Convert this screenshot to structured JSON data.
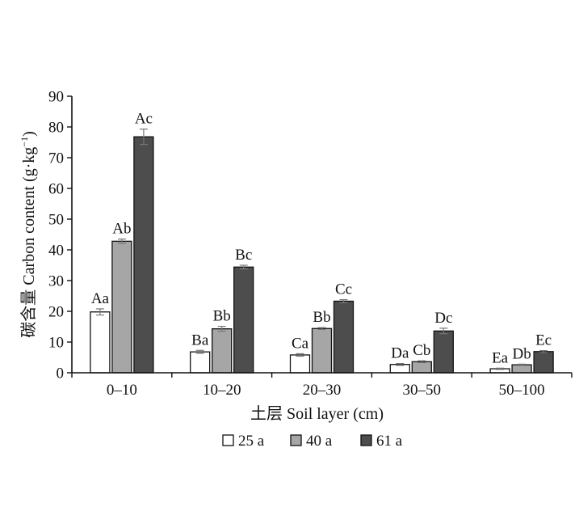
{
  "chart_data": {
    "type": "bar",
    "xlabel": "土层 Soil layer (cm)",
    "ylabel_prefix": "碳含量 Carbon content (g·kg",
    "ylabel_sup": "−1",
    "ylabel_suffix": ")",
    "ylim": [
      0,
      90
    ],
    "yticks": [
      0,
      10,
      20,
      30,
      40,
      50,
      60,
      70,
      80,
      90
    ],
    "categories": [
      "0–10",
      "10–20",
      "20–30",
      "30–50",
      "50–100"
    ],
    "series": [
      {
        "name": "25 a",
        "color": "#ffffff",
        "values": [
          19.8,
          6.8,
          5.8,
          2.7,
          1.3
        ],
        "errors": [
          1.0,
          0.5,
          0.4,
          0.3,
          0.2
        ],
        "labels": [
          "Aa",
          "Ba",
          "Ca",
          "Da",
          "Ea"
        ]
      },
      {
        "name": "40 a",
        "color": "#a6a6a6",
        "values": [
          42.8,
          14.3,
          14.4,
          3.6,
          2.6
        ],
        "errors": [
          0.7,
          0.8,
          0.3,
          0.3,
          0.2
        ],
        "labels": [
          "Ab",
          "Bb",
          "Bb",
          "Cb",
          "Db"
        ]
      },
      {
        "name": "61 a",
        "color": "#4d4d4d",
        "values": [
          76.8,
          34.4,
          23.3,
          13.6,
          6.9
        ],
        "errors": [
          2.5,
          0.6,
          0.5,
          0.9,
          0.3
        ],
        "labels": [
          "Ac",
          "Bc",
          "Cc",
          "Dc",
          "Ec"
        ]
      }
    ],
    "legend_position": "bottom",
    "grid": false
  }
}
